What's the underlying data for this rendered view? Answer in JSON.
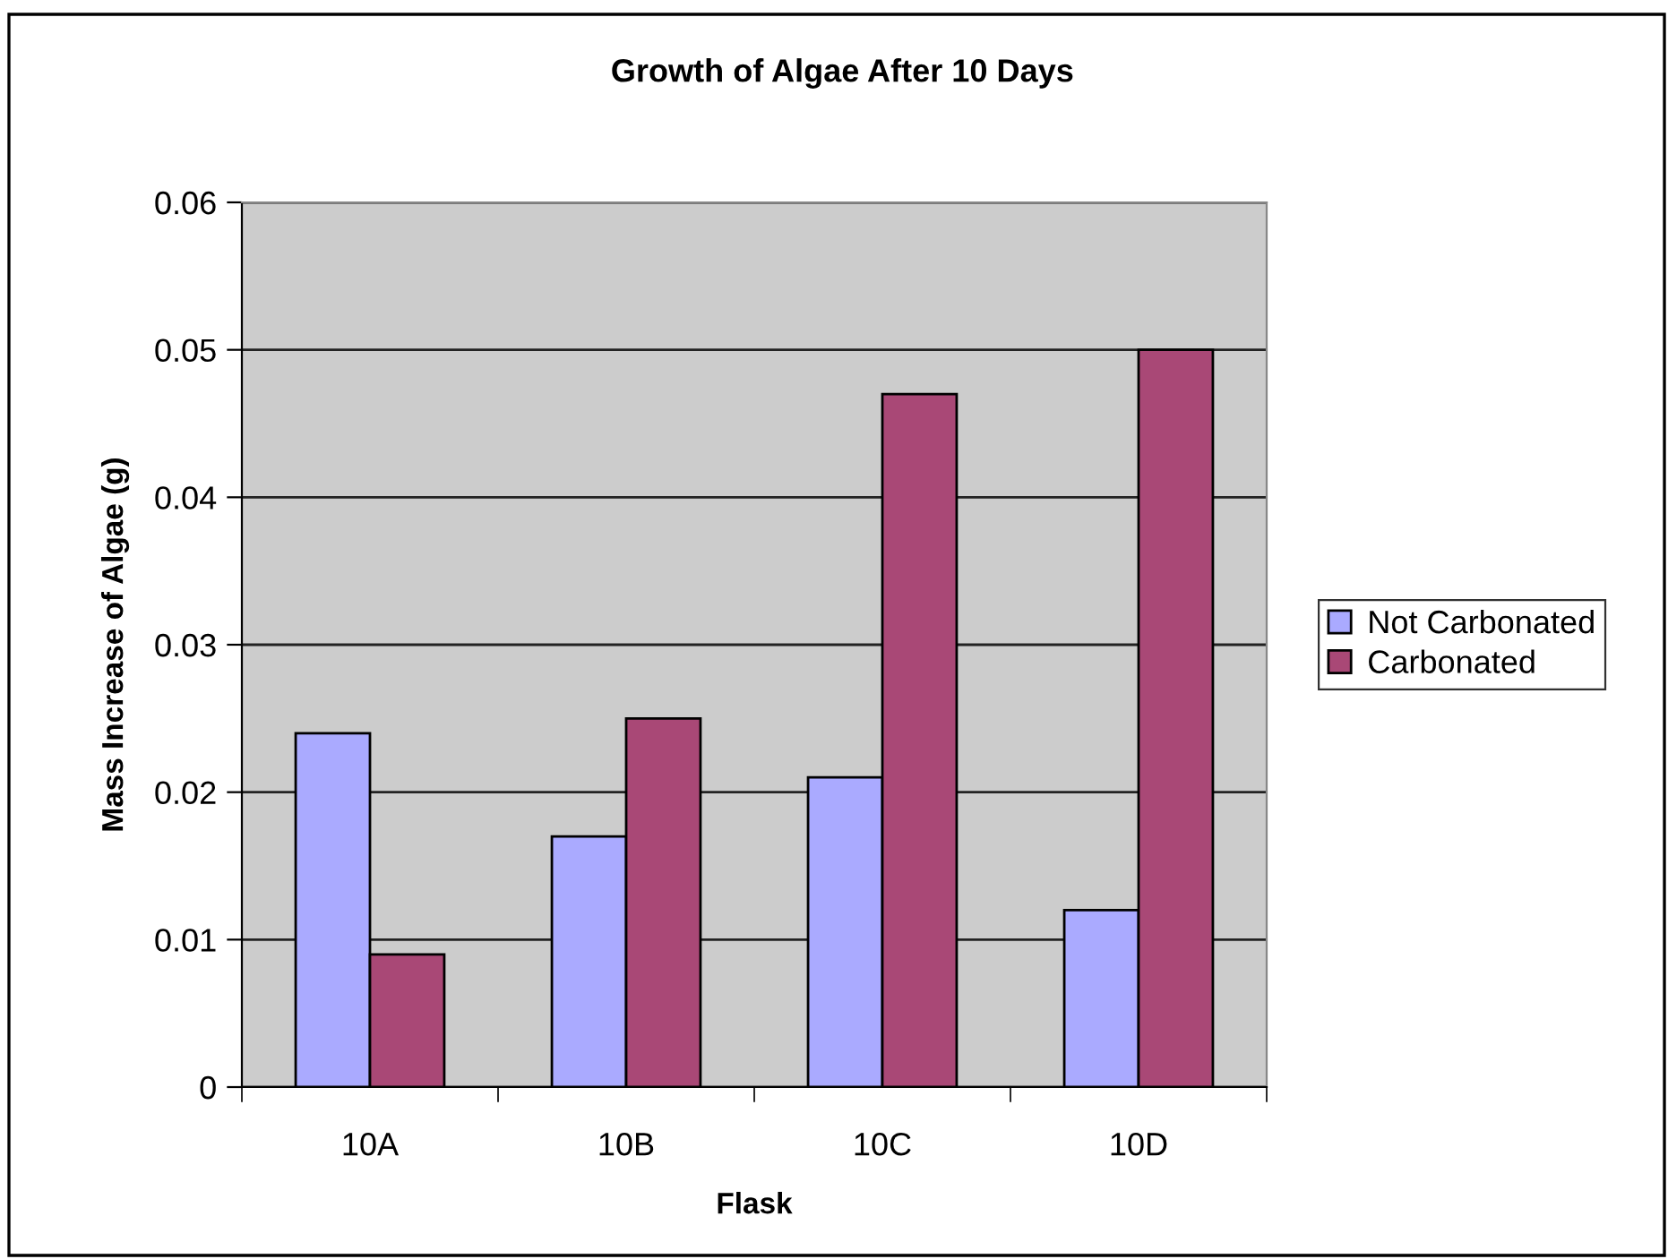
{
  "chart_data": {
    "type": "bar",
    "title": "Growth of Algae After 10 Days",
    "xlabel": "Flask",
    "ylabel": "Mass Increase of Algae (g)",
    "categories": [
      "10A",
      "10B",
      "10C",
      "10D"
    ],
    "series": [
      {
        "name": "Not Carbonated",
        "color": "#aaaaff",
        "values": [
          0.024,
          0.017,
          0.021,
          0.012
        ]
      },
      {
        "name": "Carbonated",
        "color": "#a94876",
        "values": [
          0.009,
          0.025,
          0.047,
          0.05
        ]
      }
    ],
    "ylim": [
      0,
      0.06
    ],
    "yticks": [
      0,
      0.01,
      0.02,
      0.03,
      0.04,
      0.05,
      0.06
    ],
    "grid": "y",
    "legend": "right"
  }
}
